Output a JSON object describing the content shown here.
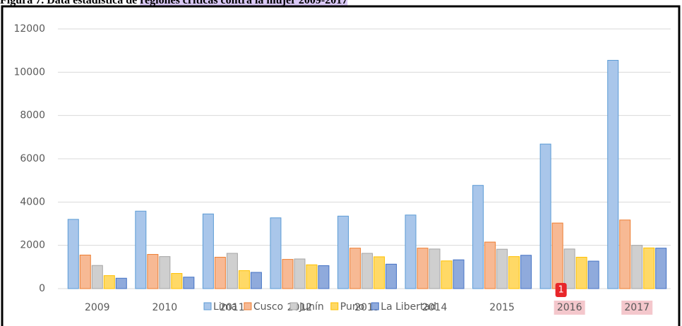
{
  "caption": {
    "label": "Figura 7.",
    "text": "Data estadística de",
    "highlighted": "regiones críticas contra la mujer 2009-2017"
  },
  "badge": "1",
  "chart_data": {
    "type": "bar",
    "categories": [
      "2009",
      "2010",
      "2011",
      "2012",
      "2013",
      "2014",
      "2015",
      "2016",
      "2017"
    ],
    "highlight": [
      7,
      8
    ],
    "series": [
      {
        "name": "Lima",
        "color": "#a9c6ea",
        "edge": "#5b9bd5",
        "values": [
          3200,
          3580,
          3450,
          3270,
          3350,
          3400,
          4770,
          6680,
          10550
        ]
      },
      {
        "name": "Cusco",
        "color": "#f7b994",
        "edge": "#ed7d31",
        "values": [
          1550,
          1580,
          1450,
          1350,
          1870,
          1870,
          2150,
          3030,
          3170
        ]
      },
      {
        "name": "Junín",
        "color": "#cfcfcf",
        "edge": "#a5a5a5",
        "values": [
          1070,
          1480,
          1630,
          1370,
          1630,
          1830,
          1820,
          1830,
          2000
        ]
      },
      {
        "name": "Puno",
        "color": "#ffd966",
        "edge": "#ffc000",
        "values": [
          600,
          700,
          830,
          1100,
          1470,
          1280,
          1480,
          1450,
          1880
        ]
      },
      {
        "name": "La Libertad",
        "color": "#8faadc",
        "edge": "#4472c4",
        "values": [
          480,
          530,
          750,
          1060,
          1130,
          1330,
          1540,
          1270,
          1870
        ]
      }
    ],
    "ylim": [
      0,
      12000
    ],
    "yticks": [
      0,
      2000,
      4000,
      6000,
      8000,
      10000,
      12000
    ],
    "grid": true
  }
}
